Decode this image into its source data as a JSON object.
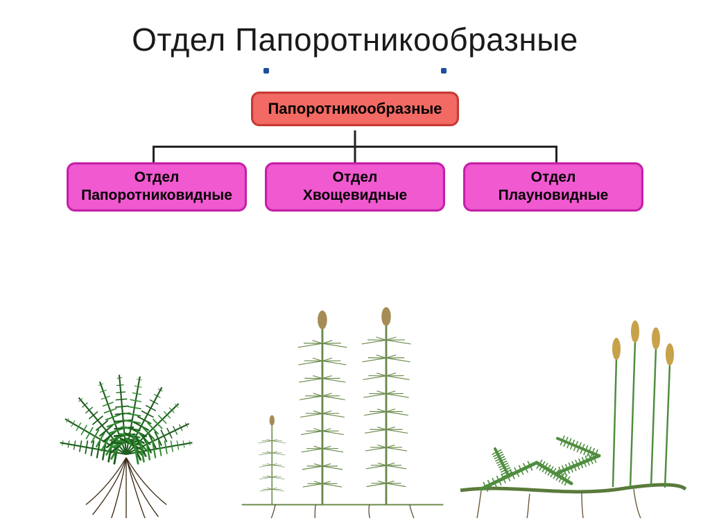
{
  "title": "Отдел  Папоротникообразные",
  "diagram": {
    "type": "tree",
    "root": {
      "label": "Папоротникообразные",
      "fill": "#f26a63",
      "border": "#c73a33",
      "text": "#000000"
    },
    "children": [
      {
        "line1": "Отдел",
        "line2": "Папоротниковидные",
        "fill": "#f159d1",
        "border": "#c51fa8"
      },
      {
        "line1": "Отдел",
        "line2": "Хвощевидные",
        "fill": "#f159d1",
        "border": "#c51fa8"
      },
      {
        "line1": "Отдел",
        "line2": "Плауновидные",
        "fill": "#f159d1",
        "border": "#c51fa8"
      }
    ],
    "connector_color": "#222222",
    "dot_color": "#1d4fa0",
    "background": "#ffffff"
  },
  "plants": [
    {
      "name": "fern",
      "leaf": "#2f8a2f",
      "leaf_dark": "#1e5e1e",
      "root": "#3a2b16"
    },
    {
      "name": "horsetail",
      "stem": "#6a8a4a",
      "strobilus": "#a58c54",
      "root": "#4a3a22"
    },
    {
      "name": "clubmoss",
      "leaf": "#4f8d3f",
      "strobilus": "#c7a24a",
      "rhizome": "#5a7a3a",
      "root": "#6b5a3a"
    }
  ]
}
